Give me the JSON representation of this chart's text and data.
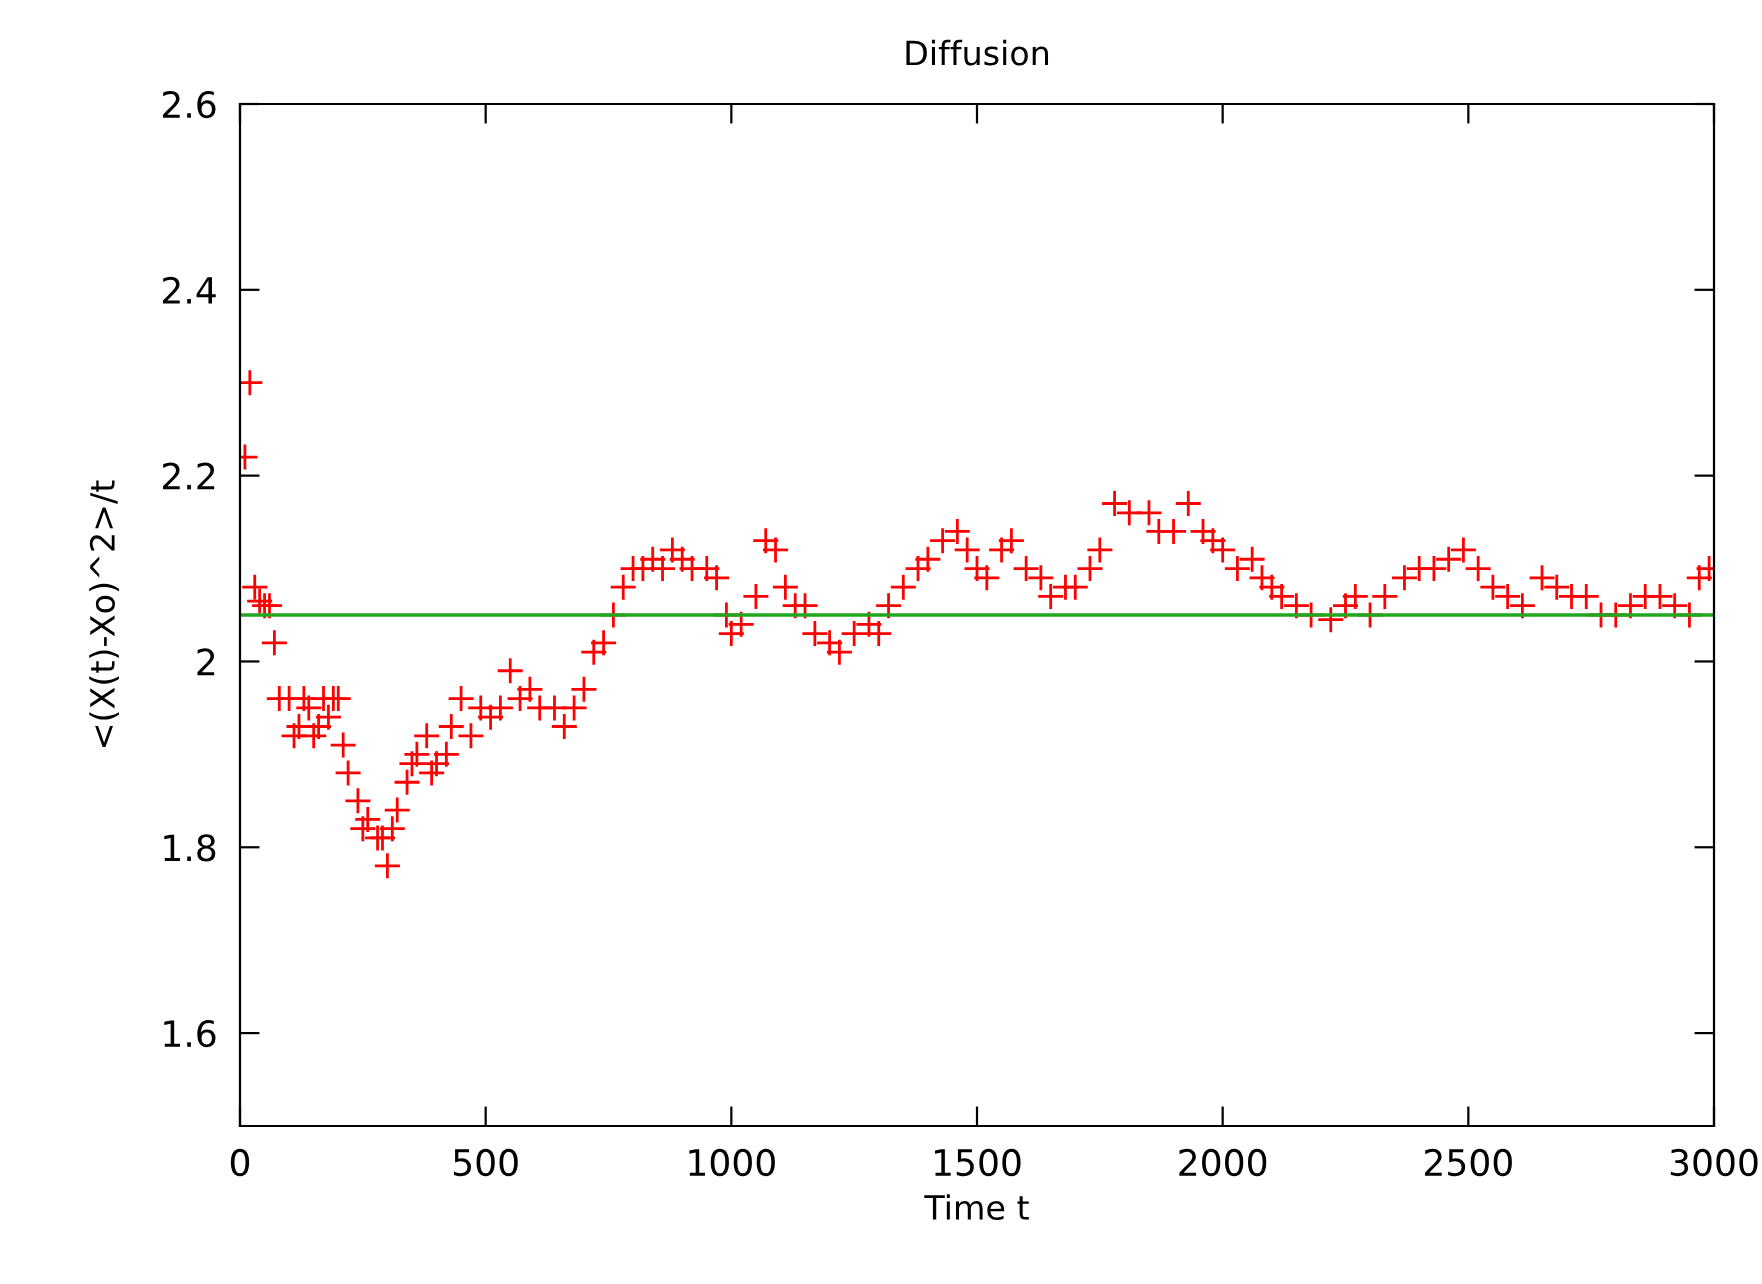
{
  "chart_data": {
    "type": "scatter",
    "title": "Diffusion",
    "xlabel": "Time t",
    "ylabel": "<(X(t)-Xo)^2>/t",
    "xlim": [
      0,
      3000
    ],
    "xticks": [
      0,
      500,
      1000,
      1500,
      2000,
      2500,
      3000
    ],
    "ylim": [
      1.5,
      2.6
    ],
    "yticks": [
      1.6,
      1.8,
      2,
      2.2,
      2.4,
      2.6
    ],
    "marker": "cross",
    "grid": false,
    "legend": false,
    "ref_lines": [
      {
        "axis": "y",
        "value": 2.05,
        "color": "#1fa81f",
        "line_style": "solid"
      }
    ],
    "series": [
      {
        "color": "#ff0000",
        "x": [
          10,
          20,
          30,
          40,
          50,
          60,
          70,
          80,
          100,
          110,
          120,
          130,
          140,
          150,
          160,
          170,
          180,
          190,
          200,
          210,
          220,
          240,
          250,
          260,
          280,
          290,
          300,
          310,
          320,
          340,
          350,
          360,
          380,
          390,
          400,
          420,
          430,
          450,
          470,
          490,
          510,
          530,
          550,
          570,
          590,
          610,
          640,
          660,
          680,
          700,
          720,
          740,
          760,
          780,
          800,
          820,
          840,
          860,
          880,
          900,
          920,
          950,
          970,
          990,
          1000,
          1020,
          1050,
          1070,
          1090,
          1110,
          1130,
          1150,
          1170,
          1200,
          1220,
          1250,
          1280,
          1300,
          1320,
          1350,
          1380,
          1400,
          1430,
          1460,
          1480,
          1500,
          1520,
          1550,
          1570,
          1600,
          1630,
          1650,
          1680,
          1700,
          1730,
          1750,
          1780,
          1810,
          1850,
          1870,
          1900,
          1930,
          1960,
          1980,
          2000,
          2030,
          2060,
          2080,
          2100,
          2120,
          2150,
          2180,
          2220,
          2250,
          2270,
          2300,
          2330,
          2370,
          2400,
          2430,
          2460,
          2490,
          2520,
          2550,
          2580,
          2610,
          2650,
          2680,
          2710,
          2740,
          2770,
          2800,
          2830,
          2860,
          2890,
          2920,
          2950,
          2970,
          2990
        ],
        "values": [
          2.22,
          2.3,
          2.08,
          2.065,
          2.06,
          2.06,
          2.02,
          1.96,
          1.96,
          1.92,
          1.93,
          1.96,
          1.95,
          1.92,
          1.93,
          1.96,
          1.94,
          1.96,
          1.96,
          1.91,
          1.88,
          1.85,
          1.82,
          1.83,
          1.81,
          1.81,
          1.78,
          1.82,
          1.84,
          1.87,
          1.89,
          1.9,
          1.92,
          1.88,
          1.89,
          1.9,
          1.93,
          1.96,
          1.92,
          1.95,
          1.94,
          1.95,
          1.99,
          1.96,
          1.97,
          1.95,
          1.95,
          1.93,
          1.95,
          1.97,
          2.01,
          2.02,
          2.05,
          2.08,
          2.1,
          2.1,
          2.11,
          2.1,
          2.12,
          2.11,
          2.1,
          2.1,
          2.09,
          2.05,
          2.03,
          2.04,
          2.07,
          2.13,
          2.12,
          2.08,
          2.06,
          2.06,
          2.03,
          2.02,
          2.01,
          2.03,
          2.04,
          2.03,
          2.06,
          2.08,
          2.1,
          2.11,
          2.13,
          2.14,
          2.12,
          2.1,
          2.09,
          2.12,
          2.13,
          2.1,
          2.09,
          2.07,
          2.08,
          2.08,
          2.1,
          2.12,
          2.17,
          2.16,
          2.16,
          2.14,
          2.14,
          2.17,
          2.14,
          2.13,
          2.12,
          2.1,
          2.11,
          2.09,
          2.08,
          2.07,
          2.06,
          2.05,
          2.045,
          2.06,
          2.07,
          2.05,
          2.07,
          2.09,
          2.1,
          2.1,
          2.11,
          2.12,
          2.1,
          2.08,
          2.07,
          2.06,
          2.09,
          2.08,
          2.07,
          2.07,
          2.05,
          2.05,
          2.06,
          2.07,
          2.07,
          2.06,
          2.05,
          2.09,
          2.1
        ]
      }
    ]
  }
}
